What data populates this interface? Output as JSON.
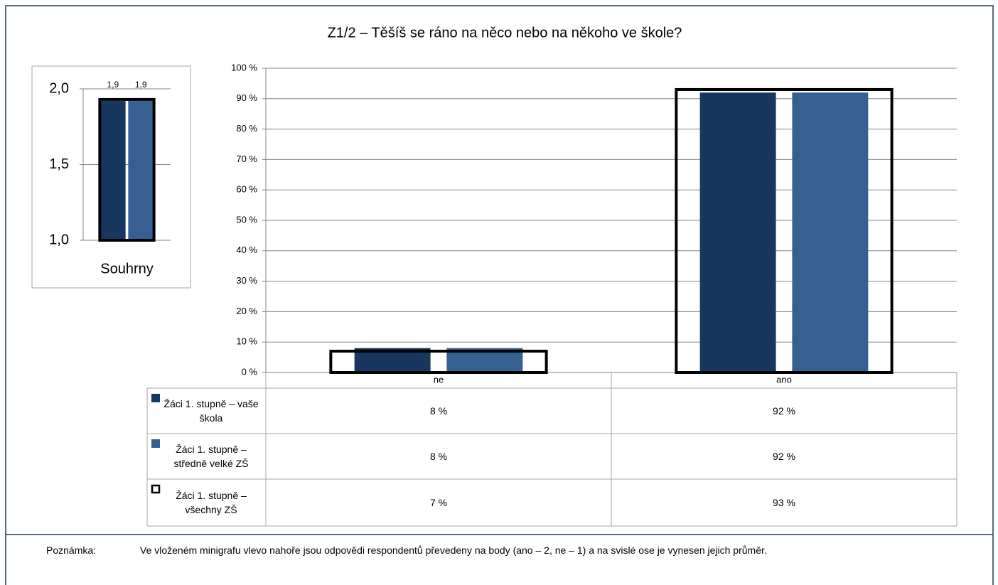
{
  "chart_data": [
    {
      "type": "bar",
      "title": "Z1/2 – Těšíš se ráno na něco nebo na někoho ve škole?",
      "categories": [
        "ne",
        "ano"
      ],
      "series": [
        {
          "name": "Žáci 1. stupně – vaše škola",
          "color": "#17375e",
          "values": [
            8,
            92
          ],
          "value_labels": [
            "8 %",
            "92 %"
          ]
        },
        {
          "name": "Žáci 1. stupně – středně velké ZŠ",
          "color": "#376092",
          "values": [
            8,
            92
          ],
          "value_labels": [
            "8 %",
            "92 %"
          ]
        },
        {
          "name": "Žáci 1. stupně – všechny ZŠ",
          "color": "#000000",
          "outline": true,
          "values": [
            7,
            93
          ],
          "value_labels": [
            "7 %",
            "93 %"
          ]
        }
      ],
      "ylim": [
        0,
        100
      ],
      "yticks": [
        {
          "value": 0,
          "label": "0 %"
        },
        {
          "value": 10,
          "label": "10 %"
        },
        {
          "value": 20,
          "label": "20 %"
        },
        {
          "value": 30,
          "label": "30 %"
        },
        {
          "value": 40,
          "label": "40 %"
        },
        {
          "value": 50,
          "label": "50 %"
        },
        {
          "value": 60,
          "label": "60 %"
        },
        {
          "value": 70,
          "label": "70 %"
        },
        {
          "value": 80,
          "label": "80 %"
        },
        {
          "value": 90,
          "label": "90 %"
        },
        {
          "value": 100,
          "label": "100 %"
        }
      ],
      "grid": true
    },
    {
      "type": "bar",
      "categories": [
        "Souhrny"
      ],
      "series": [
        {
          "color": "#17375e",
          "values": [
            1.92
          ],
          "value_labels": [
            "1,9"
          ]
        },
        {
          "color": "#376092",
          "values": [
            1.92
          ],
          "value_labels": [
            "1,9"
          ]
        },
        {
          "color": "#000000",
          "outline": true,
          "values": [
            1.93
          ]
        }
      ],
      "ylim": [
        1,
        2
      ],
      "yticks": [
        {
          "value": 1,
          "label": "1,0"
        },
        {
          "value": 1.5,
          "label": "1,5"
        },
        {
          "value": 2,
          "label": "2,0"
        }
      ],
      "grid": true
    }
  ],
  "note": {
    "label": "Poznámka:",
    "text": "Ve vloženém minigrafu vlevo nahoře jsou odpovědi respondentů převedeny na body (ano – 2, ne – 1) a na svislé ose je vynesen jejich průměr."
  }
}
